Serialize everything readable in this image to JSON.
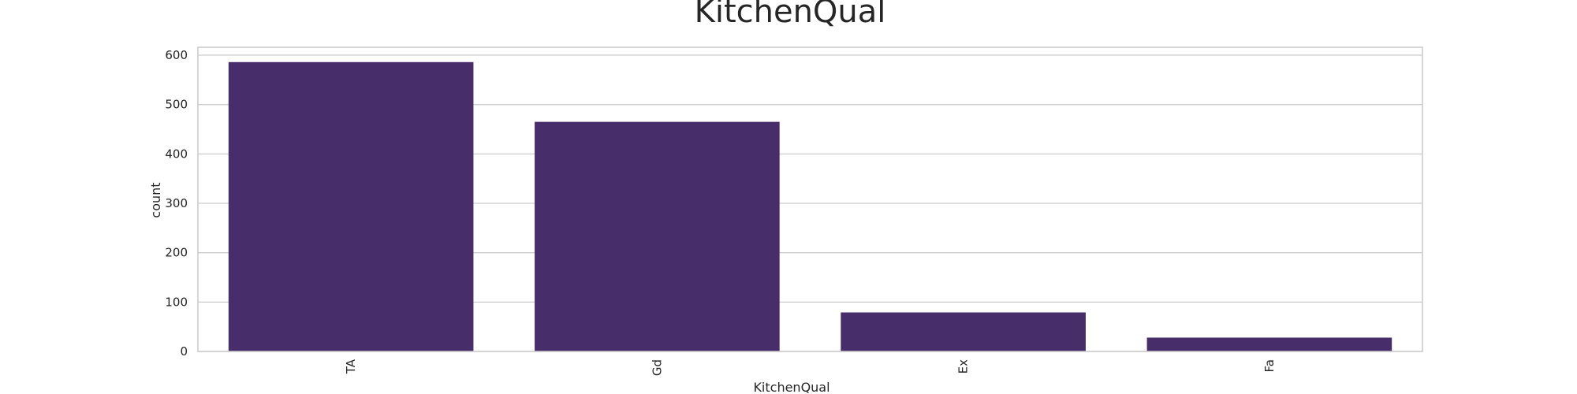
{
  "chart_data": {
    "type": "bar",
    "title": "KitchenQual",
    "xlabel": "KitchenQual",
    "ylabel": "count",
    "categories": [
      "TA",
      "Gd",
      "Ex",
      "Fa"
    ],
    "values": [
      586,
      465,
      79,
      28
    ],
    "ylim": [
      0,
      616
    ],
    "yticks": [
      0,
      100,
      200,
      300,
      400,
      500,
      600
    ],
    "grid": true,
    "bar_color": "#472d69"
  }
}
